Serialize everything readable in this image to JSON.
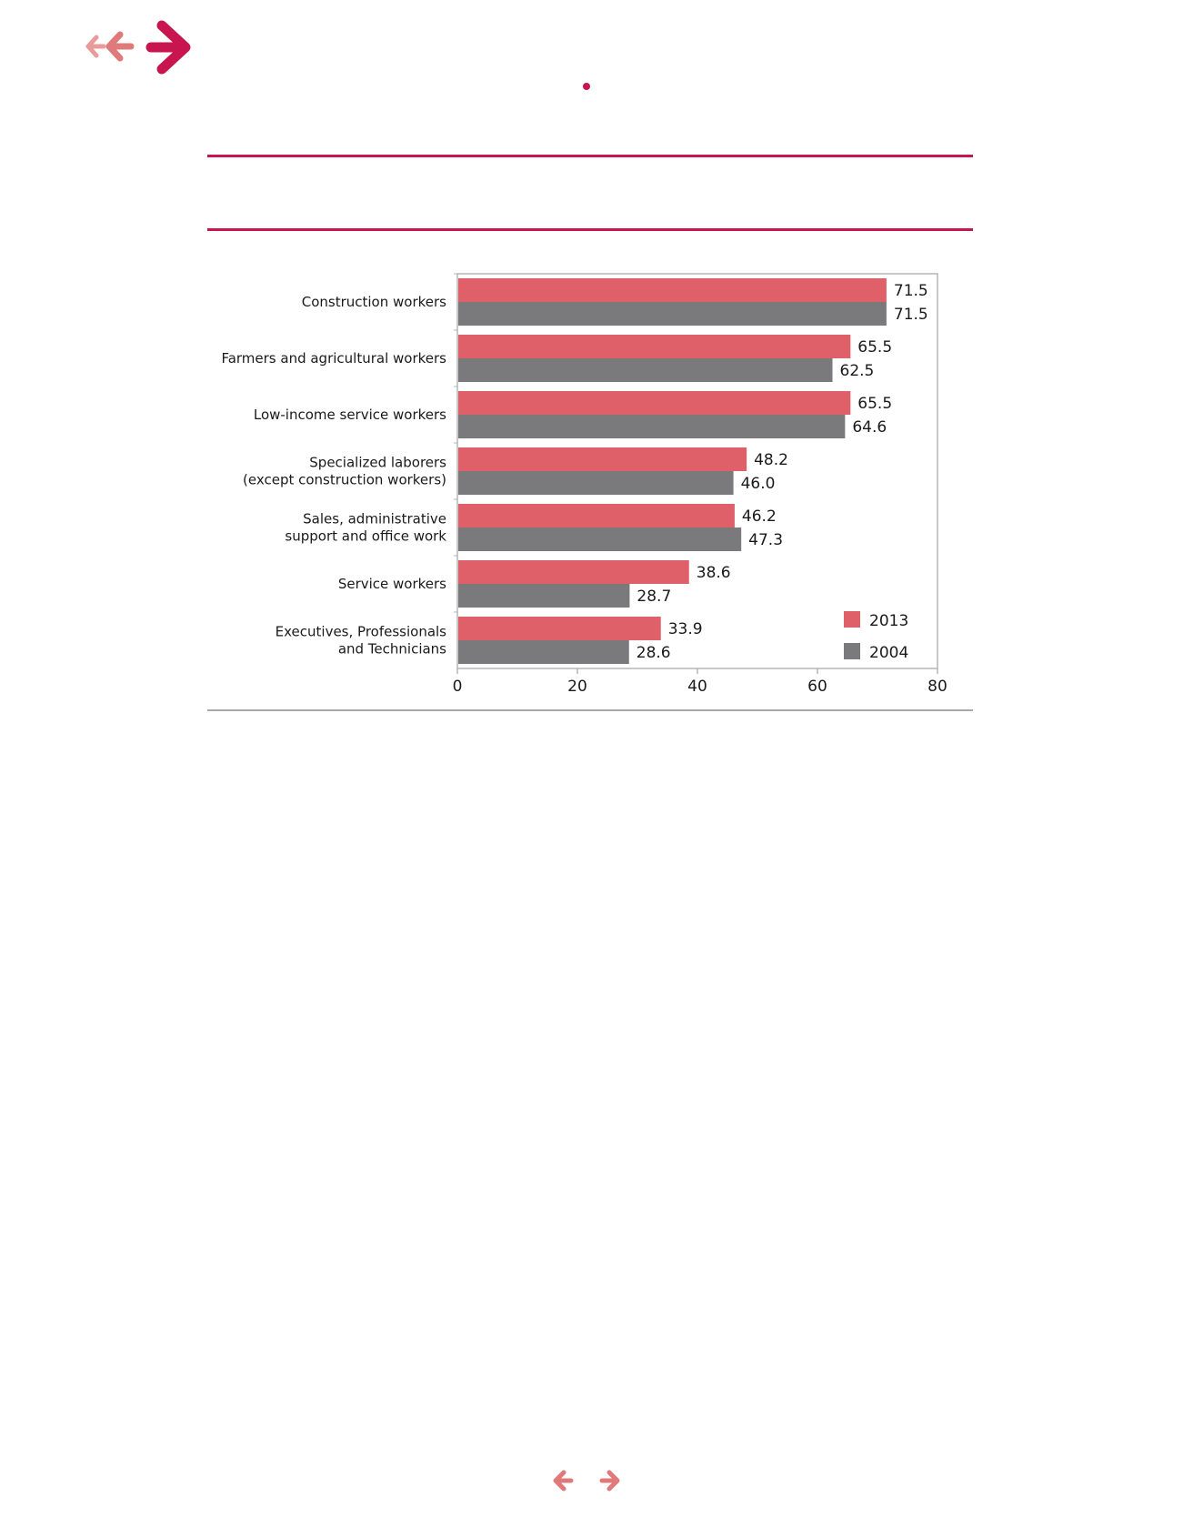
{
  "colors": {
    "accent": "#c8154f",
    "arrow_light": "#e99a9a",
    "arrow_mid": "#e07a7a",
    "series_2013": "#e0606a",
    "series_2004": "#7a7a7d",
    "rule_gray": "#a8a8a8"
  },
  "icons": {
    "nav_top": [
      "arrow-left-small-icon",
      "arrow-left-icon",
      "arrow-right-large-icon"
    ],
    "nav_bottom": [
      "arrow-left-icon",
      "arrow-right-icon"
    ]
  },
  "chart_data": {
    "type": "bar",
    "orientation": "horizontal",
    "categories": [
      [
        "Construction workers"
      ],
      [
        "Farmers and agricultural workers"
      ],
      [
        "Low-income service workers"
      ],
      [
        "Specialized laborers",
        "(except construction workers)"
      ],
      [
        "Sales, administrative",
        "support and office work"
      ],
      [
        "Service workers"
      ],
      [
        "Executives, Professionals",
        "and Technicians"
      ]
    ],
    "series": [
      {
        "name": "2013",
        "values": [
          71.5,
          65.5,
          65.5,
          48.2,
          46.2,
          38.6,
          33.9
        ],
        "labels": [
          "71.5",
          "65.5",
          "65.5",
          "48.2",
          "46.2",
          "38.6",
          "33.9"
        ]
      },
      {
        "name": "2004",
        "values": [
          71.5,
          62.5,
          64.6,
          46.0,
          47.3,
          28.7,
          28.6
        ],
        "labels": [
          "71.5",
          "62.5",
          "64.6",
          "46.0",
          "47.3",
          "28.7",
          "28.6"
        ]
      }
    ],
    "xlim": [
      0,
      80
    ],
    "xticks": [
      0,
      20,
      40,
      60,
      80
    ],
    "legend": {
      "placement": "bottom-right",
      "order": [
        "2013",
        "2004"
      ]
    },
    "grid": false
  }
}
